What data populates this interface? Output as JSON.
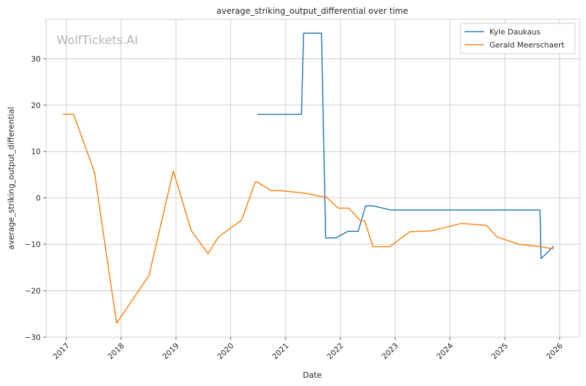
{
  "chart_data": {
    "type": "line",
    "title": "average_striking_output_differential over time",
    "xlabel": "Date",
    "ylabel": "average_striking_output_differential",
    "watermark": "WolfTickets.AI",
    "xlim": [
      "2016-08-20",
      "2026-05-15"
    ],
    "ylim": [
      -30,
      38.5
    ],
    "x_ticks": [
      "2017-01-01",
      "2018-01-01",
      "2019-01-01",
      "2020-01-01",
      "2021-01-01",
      "2022-01-01",
      "2023-01-01",
      "2024-01-01",
      "2025-01-01",
      "2026-01-01"
    ],
    "x_tick_labels": [
      "2017",
      "2018",
      "2019",
      "2020",
      "2021",
      "2022",
      "2023",
      "2024",
      "2025",
      "2026"
    ],
    "y_ticks": [
      -30,
      -20,
      -10,
      0,
      10,
      20,
      30
    ],
    "y_tick_labels": [
      "−30",
      "−20",
      "−10",
      "0",
      "10",
      "20",
      "30"
    ],
    "grid": true,
    "legend_position": "top-right",
    "series": [
      {
        "name": "Kyle Daukaus",
        "color": "#1f77b4",
        "points": [
          [
            "2020-06-27",
            18.0
          ],
          [
            "2021-04-17",
            18.0
          ],
          [
            "2021-05-01",
            35.5
          ],
          [
            "2021-08-28",
            35.5
          ],
          [
            "2021-09-25",
            -8.6
          ],
          [
            "2021-12-04",
            -8.6
          ],
          [
            "2022-02-19",
            -7.2
          ],
          [
            "2022-04-30",
            -7.2
          ],
          [
            "2022-06-18",
            -1.7
          ],
          [
            "2022-08-06",
            -1.7
          ],
          [
            "2022-12-03",
            -2.6
          ],
          [
            "2025-08-23",
            -2.6
          ],
          [
            "2025-08-30",
            -13.1
          ],
          [
            "2025-11-22",
            -10.4
          ]
        ]
      },
      {
        "name": "Gerald Meerschaert",
        "color": "#ff7f0e",
        "points": [
          [
            "2016-12-09",
            18.0
          ],
          [
            "2017-02-19",
            18.0
          ],
          [
            "2017-07-07",
            5.6
          ],
          [
            "2017-12-02",
            -27.0
          ],
          [
            "2018-07-06",
            -16.7
          ],
          [
            "2018-12-15",
            5.8
          ],
          [
            "2019-04-13",
            -7.0
          ],
          [
            "2019-08-03",
            -12.0
          ],
          [
            "2019-10-12",
            -8.4
          ],
          [
            "2020-03-14",
            -4.8
          ],
          [
            "2020-06-13",
            3.5
          ],
          [
            "2020-06-27",
            3.4
          ],
          [
            "2020-09-26",
            1.6
          ],
          [
            "2020-11-21",
            1.6
          ],
          [
            "2021-05-15",
            1.0
          ],
          [
            "2021-08-21",
            0.3
          ],
          [
            "2021-09-25",
            0.3
          ],
          [
            "2021-12-18",
            -2.2
          ],
          [
            "2022-02-26",
            -2.2
          ],
          [
            "2022-05-14",
            -4.9
          ],
          [
            "2022-06-11",
            -4.9
          ],
          [
            "2022-08-06",
            -10.5
          ],
          [
            "2022-11-26",
            -10.5
          ],
          [
            "2023-04-08",
            -7.3
          ],
          [
            "2023-08-26",
            -7.1
          ],
          [
            "2024-03-16",
            -5.5
          ],
          [
            "2024-08-31",
            -5.9
          ],
          [
            "2024-11-09",
            -8.4
          ],
          [
            "2025-04-05",
            -10.0
          ],
          [
            "2025-08-30",
            -10.5
          ],
          [
            "2025-11-22",
            -11.0
          ]
        ]
      }
    ]
  }
}
